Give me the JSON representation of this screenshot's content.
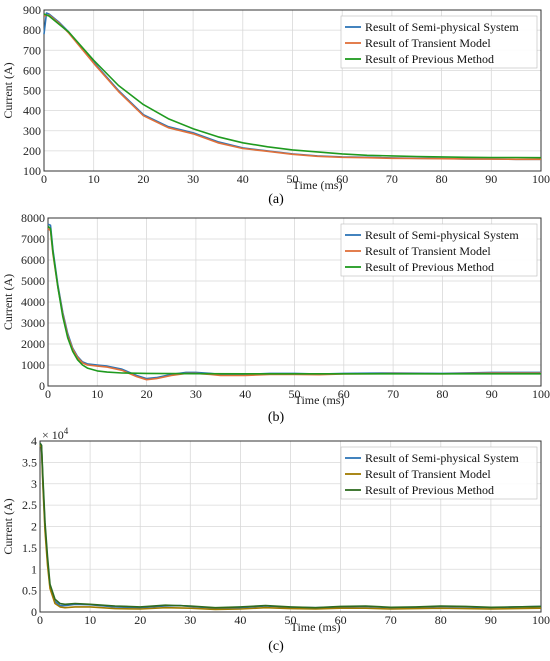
{
  "chart_data": [
    {
      "type": "line",
      "panel_label": "(a)",
      "xlabel": "Time (ms)",
      "ylabel": "Current (A)",
      "xlim": [
        0,
        100
      ],
      "ylim": [
        100,
        900
      ],
      "xticks": [
        0,
        10,
        20,
        30,
        40,
        50,
        60,
        70,
        80,
        90,
        100
      ],
      "yticks": [
        100,
        200,
        300,
        400,
        500,
        600,
        700,
        800,
        900
      ],
      "grid": true,
      "legend": "top-right",
      "colors": [
        "#2e75b6",
        "#e0703a",
        "#1f9a1f"
      ],
      "series": [
        {
          "name": "Result of Semi-physical System",
          "x": [
            0,
            0.5,
            1,
            3,
            5,
            10,
            15,
            20,
            25,
            30,
            35,
            40,
            45,
            50,
            55,
            60,
            65,
            70,
            75,
            80,
            85,
            90,
            95,
            100
          ],
          "y": [
            780,
            885,
            880,
            840,
            790,
            640,
            500,
            380,
            320,
            290,
            245,
            215,
            200,
            185,
            175,
            170,
            168,
            165,
            163,
            162,
            160,
            160,
            158,
            158
          ]
        },
        {
          "name": "Result of Transient Model",
          "x": [
            0,
            1,
            3,
            5,
            10,
            15,
            20,
            25,
            30,
            35,
            40,
            45,
            50,
            55,
            60,
            65,
            70,
            75,
            80,
            85,
            90,
            95,
            100
          ],
          "y": [
            870,
            875,
            835,
            785,
            635,
            495,
            375,
            315,
            285,
            240,
            212,
            198,
            183,
            173,
            168,
            166,
            163,
            162,
            161,
            160,
            159,
            158,
            158
          ]
        },
        {
          "name": "Result of Previous Method",
          "x": [
            0,
            1,
            3,
            5,
            10,
            15,
            20,
            25,
            30,
            35,
            40,
            45,
            50,
            55,
            60,
            65,
            70,
            75,
            80,
            85,
            90,
            95,
            100
          ],
          "y": [
            880,
            870,
            830,
            790,
            650,
            525,
            430,
            360,
            310,
            270,
            240,
            220,
            205,
            195,
            185,
            178,
            175,
            172,
            170,
            168,
            167,
            167,
            166
          ]
        }
      ]
    },
    {
      "type": "line",
      "panel_label": "(b)",
      "xlabel": "Time (ms)",
      "ylabel": "Current (A)",
      "xlim": [
        0,
        100
      ],
      "ylim": [
        0,
        8000
      ],
      "xticks": [
        0,
        10,
        20,
        30,
        40,
        50,
        60,
        70,
        80,
        90,
        100
      ],
      "yticks": [
        0,
        1000,
        2000,
        3000,
        4000,
        5000,
        6000,
        7000,
        8000
      ],
      "grid": true,
      "legend": "top-right",
      "colors": [
        "#2e75b6",
        "#e0703a",
        "#1f9a1f"
      ],
      "series": [
        {
          "name": "Result of Semi-physical System",
          "x": [
            0,
            0.5,
            1,
            2,
            3,
            4,
            5,
            6,
            7,
            8,
            10,
            12,
            15,
            18,
            20,
            22,
            25,
            28,
            30,
            33,
            35,
            40,
            45,
            50,
            55,
            60,
            70,
            80,
            90,
            100
          ],
          "y": [
            7700,
            7650,
            6500,
            4800,
            3500,
            2500,
            1800,
            1400,
            1150,
            1050,
            1000,
            950,
            800,
            500,
            350,
            400,
            550,
            650,
            650,
            600,
            550,
            550,
            600,
            600,
            570,
            600,
            620,
            600,
            650,
            650
          ]
        },
        {
          "name": "Result of Transient Model",
          "x": [
            0,
            0.5,
            1,
            2,
            3,
            4,
            5,
            6,
            7,
            8,
            10,
            12,
            15,
            18,
            20,
            22,
            25,
            28,
            30,
            33,
            35,
            40,
            45,
            50,
            55,
            60,
            70,
            80,
            90,
            100
          ],
          "y": [
            7500,
            7400,
            6300,
            4700,
            3400,
            2400,
            1750,
            1350,
            1100,
            1000,
            950,
            900,
            750,
            450,
            300,
            350,
            500,
            600,
            600,
            550,
            500,
            500,
            550,
            550,
            540,
            570,
            590,
            580,
            610,
            610
          ]
        },
        {
          "name": "Result of Previous Method",
          "x": [
            0,
            0.5,
            1,
            2,
            3,
            4,
            5,
            6,
            7,
            8,
            10,
            12,
            15,
            20,
            25,
            30,
            40,
            50,
            60,
            70,
            80,
            90,
            100
          ],
          "y": [
            7600,
            7500,
            6400,
            4700,
            3300,
            2300,
            1650,
            1250,
            1000,
            850,
            720,
            660,
            620,
            600,
            590,
            585,
            580,
            580,
            580,
            580,
            580,
            580,
            580
          ]
        }
      ]
    },
    {
      "type": "line",
      "panel_label": "(c)",
      "xlabel": "Time (ms)",
      "ylabel": "Current (A)",
      "y_multiplier": "× 10",
      "y_multiplier_exp": "4",
      "xlim": [
        0,
        100
      ],
      "ylim": [
        0,
        4
      ],
      "xticks": [
        0,
        10,
        20,
        30,
        40,
        50,
        60,
        70,
        80,
        90,
        100
      ],
      "yticks": [
        0,
        0.5,
        1,
        1.5,
        2,
        2.5,
        3,
        3.5,
        4
      ],
      "grid": true,
      "legend": "top-right",
      "colors": [
        "#2e75b6",
        "#a07a00",
        "#2e6b1f"
      ],
      "series": [
        {
          "name": "Result of Semi-physical System",
          "x": [
            0,
            0.3,
            0.6,
            1,
            1.5,
            2,
            3,
            4,
            5,
            7,
            10,
            15,
            20,
            25,
            28,
            30,
            35,
            40,
            45,
            50,
            55,
            60,
            65,
            70,
            75,
            80,
            85,
            90,
            95,
            100
          ],
          "y": [
            3.95,
            3.9,
            3.0,
            2.0,
            1.2,
            0.6,
            0.25,
            0.15,
            0.15,
            0.18,
            0.17,
            0.12,
            0.1,
            0.14,
            0.15,
            0.13,
            0.09,
            0.1,
            0.14,
            0.11,
            0.1,
            0.12,
            0.13,
            0.1,
            0.11,
            0.13,
            0.12,
            0.1,
            0.12,
            0.13
          ]
        },
        {
          "name": "Result of Transient Model",
          "x": [
            0,
            0.3,
            0.6,
            1,
            1.5,
            2,
            3,
            4,
            5,
            7,
            10,
            15,
            20,
            25,
            30,
            35,
            40,
            45,
            50,
            55,
            60,
            65,
            70,
            75,
            80,
            85,
            90,
            95,
            100
          ],
          "y": [
            3.9,
            3.85,
            2.9,
            1.9,
            1.1,
            0.55,
            0.2,
            0.12,
            0.1,
            0.12,
            0.12,
            0.08,
            0.07,
            0.1,
            0.09,
            0.06,
            0.07,
            0.1,
            0.08,
            0.07,
            0.09,
            0.09,
            0.07,
            0.08,
            0.09,
            0.08,
            0.07,
            0.08,
            0.09
          ]
        },
        {
          "name": "Result of Previous Method",
          "x": [
            0,
            0.3,
            0.6,
            1,
            1.5,
            2,
            3,
            4,
            5,
            7,
            10,
            15,
            20,
            25,
            30,
            35,
            40,
            45,
            50,
            55,
            60,
            65,
            70,
            75,
            80,
            85,
            90,
            95,
            100
          ],
          "y": [
            3.95,
            3.9,
            3.1,
            2.1,
            1.3,
            0.65,
            0.3,
            0.2,
            0.18,
            0.2,
            0.18,
            0.14,
            0.12,
            0.16,
            0.14,
            0.1,
            0.12,
            0.15,
            0.12,
            0.1,
            0.13,
            0.14,
            0.11,
            0.12,
            0.14,
            0.13,
            0.11,
            0.12,
            0.13
          ]
        }
      ]
    }
  ]
}
